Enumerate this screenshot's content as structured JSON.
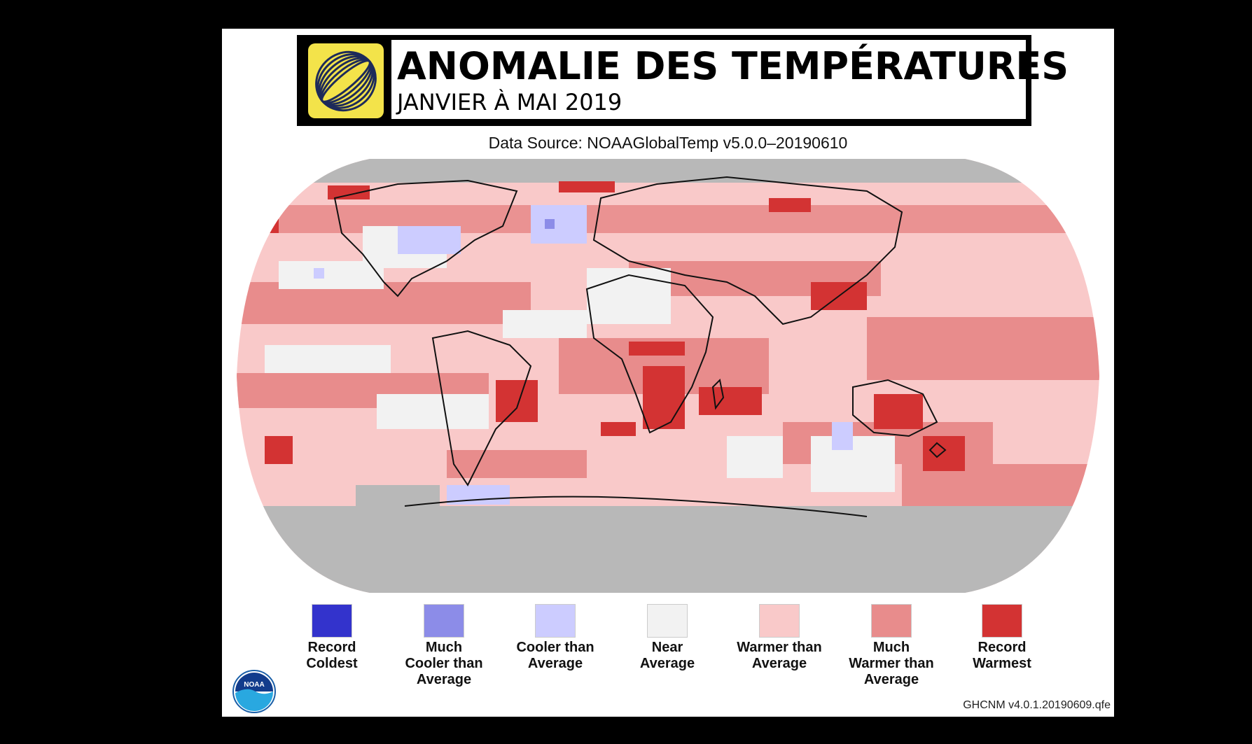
{
  "header": {
    "title": "ANOMALIE DES TEMPÉRATURES",
    "subtitle": "JANVIER À MAI 2019",
    "logo_icon": "globe-rings-logo"
  },
  "source": "Data Source: NOAAGlobalTemp v5.0.0–20190610",
  "footer": "GHCNM v4.0.1.20190609.qfe",
  "noaa_logo": {
    "text": "NOAA",
    "icon": "noaa-seal-icon"
  },
  "colors": {
    "record_coldest": "#3333cc",
    "much_cooler": "#8c8ce8",
    "cooler": "#ccccff",
    "near": "#f2f2f2",
    "warmer": "#f9c9c9",
    "much_warmer": "#e88c8c",
    "record_warmest": "#d33333",
    "no_data": "#b8b8b8"
  },
  "legend": [
    {
      "label": "Record\nColdest",
      "color": "#3333cc"
    },
    {
      "label": "Much\nCooler than\nAverage",
      "color": "#8c8ce8"
    },
    {
      "label": "Cooler than\nAverage",
      "color": "#ccccff"
    },
    {
      "label": "Near\nAverage",
      "color": "#f2f2f2"
    },
    {
      "label": "Warmer than\nAverage",
      "color": "#f9c9c9"
    },
    {
      "label": "Much\nWarmer than\nAverage",
      "color": "#e88c8c"
    },
    {
      "label": "Record\nWarmest",
      "color": "#d33333"
    }
  ]
}
